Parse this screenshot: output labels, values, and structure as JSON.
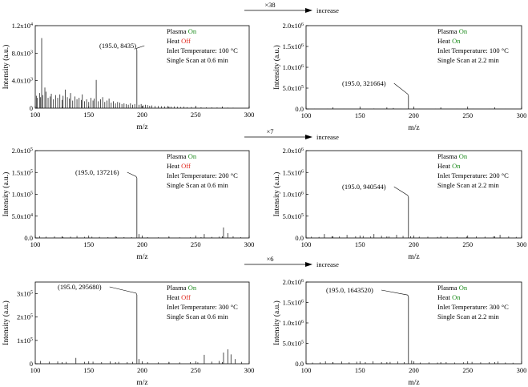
{
  "arrows": [
    {
      "multiplier": "×38",
      "label": "increase"
    },
    {
      "multiplier": "×7",
      "label": "increase"
    },
    {
      "multiplier": "×6",
      "label": "increase"
    }
  ],
  "legend_keys": {
    "plasma": "Plasma",
    "heat": "Heat"
  },
  "state_colors": {
    "On": "#1a8a1a",
    "Off": "#e0261b"
  },
  "chart_data": [
    {
      "type": "bar",
      "panel": "row1-left",
      "xlabel": "m/z",
      "ylabel": "Intensity (a.u.)",
      "xlim": [
        100,
        300
      ],
      "ylim": [
        0,
        12000
      ],
      "xticks": [
        100,
        150,
        200,
        250,
        300
      ],
      "yticks": [
        0,
        4000,
        8000,
        12000
      ],
      "ytick_labels": [
        "0",
        "4.0x10^3",
        "8.0x10^3",
        "1.2x10^4"
      ],
      "plasma": "On",
      "heat": "Off",
      "inlet_temperature": "Inlet Temperature: 100 °C",
      "scan": "Single Scan at 0.6 min",
      "peak_label": "(195.0, 8435)",
      "peak": [
        195.0,
        8435
      ],
      "x": [
        101,
        102,
        104,
        105,
        106,
        107,
        109,
        110,
        112,
        114,
        115,
        117,
        119,
        121,
        123,
        125,
        126,
        128,
        130,
        132,
        133,
        135,
        137,
        139,
        141,
        143,
        144,
        146,
        148,
        150,
        152,
        154,
        155,
        157,
        159,
        161,
        163,
        165,
        167,
        169,
        171,
        173,
        175,
        177,
        179,
        181,
        183,
        185,
        187,
        189,
        191,
        193,
        195,
        197,
        199,
        201,
        203,
        205,
        207,
        209,
        212,
        215,
        218,
        221,
        224,
        227,
        230,
        233,
        236,
        239,
        242,
        246,
        250,
        255,
        260,
        265,
        270,
        275,
        280,
        285
      ],
      "y": [
        1800,
        1500,
        2200,
        1600,
        10200,
        1900,
        3000,
        2400,
        1500,
        1700,
        2100,
        1300,
        1900,
        1500,
        2000,
        1200,
        1800,
        2700,
        1600,
        1400,
        2200,
        1100,
        1700,
        1300,
        1500,
        1200,
        2000,
        1000,
        1300,
        900,
        1500,
        1100,
        1400,
        4100,
        1000,
        1300,
        1600,
        900,
        1100,
        1400,
        800,
        1000,
        700,
        900,
        800,
        600,
        700,
        600,
        500,
        700,
        500,
        600,
        8435,
        500,
        600,
        400,
        500,
        450,
        350,
        400,
        300,
        300,
        280,
        250,
        300,
        220,
        250,
        200,
        180,
        220,
        150,
        180,
        160,
        130,
        120,
        110,
        100,
        90,
        80,
        70
      ]
    },
    {
      "type": "bar",
      "panel": "row1-right",
      "xlabel": "m/z",
      "ylabel": "Intensity (a.u.)",
      "xlim": [
        100,
        300
      ],
      "ylim": [
        0,
        2000000
      ],
      "xticks": [
        100,
        150,
        200,
        250,
        300
      ],
      "yticks": [
        0,
        500000,
        1000000,
        1500000,
        2000000
      ],
      "ytick_labels": [
        "0.0",
        "5.0x10^5",
        "1.0x10^6",
        "1.5x10^6",
        "2.0x10^6"
      ],
      "plasma": "On",
      "heat": "On",
      "inlet_temperature": "Inlet Temperature: 100 °C",
      "scan": "Single Scan at 2.2 min",
      "peak_label": "(195.0, 321664)",
      "peak": [
        195.0,
        321664
      ],
      "x": [
        108,
        120,
        135,
        150,
        163,
        176,
        181,
        188,
        195,
        205,
        220,
        240,
        255,
        270,
        285
      ],
      "y": [
        8000,
        9000,
        7000,
        10000,
        12000,
        9000,
        25000,
        8000,
        321664,
        7000,
        6000,
        5000,
        6000,
        5000,
        4000
      ]
    },
    {
      "type": "bar",
      "panel": "row2-left",
      "xlabel": "m/z",
      "ylabel": "Intensity (a.u.)",
      "xlim": [
        100,
        300
      ],
      "ylim": [
        0,
        200000
      ],
      "xticks": [
        100,
        150,
        200,
        250,
        300
      ],
      "yticks": [
        0,
        50000,
        100000,
        150000,
        200000
      ],
      "ytick_labels": [
        "0.0",
        "5.0x10^4",
        "1.0x10^5",
        "1.5x10^5",
        "2.0x10^5"
      ],
      "plasma": "On",
      "heat": "Off",
      "inlet_temperature": "Inlet Temperature: 200 °C",
      "scan": "Single Scan at 0.6 min",
      "peak_label": "(195.0, 137216)",
      "peak": [
        195.0,
        137216
      ],
      "x": [
        104,
        110,
        118,
        126,
        133,
        139,
        146,
        153,
        160,
        168,
        176,
        183,
        190,
        195,
        197,
        205,
        215,
        225,
        235,
        245,
        255,
        258,
        265,
        272,
        276,
        280,
        285,
        292
      ],
      "y": [
        4000,
        3000,
        3500,
        2500,
        3000,
        4500,
        2500,
        3000,
        2500,
        2000,
        2500,
        2000,
        2000,
        137216,
        9000,
        2000,
        1500,
        2000,
        1500,
        1500,
        2000,
        9000,
        2500,
        3000,
        24000,
        11000,
        4000,
        2000
      ]
    },
    {
      "type": "bar",
      "panel": "row2-right",
      "xlabel": "m/z",
      "ylabel": "Intensity (a.u.)",
      "xlim": [
        100,
        300
      ],
      "ylim": [
        0,
        2000000
      ],
      "xticks": [
        100,
        150,
        200,
        250,
        300
      ],
      "yticks": [
        0,
        500000,
        1000000,
        1500000,
        2000000
      ],
      "ytick_labels": [
        "0.0",
        "5.0x10^5",
        "1.0x10^6",
        "1.5x10^6",
        "2.0x10^6"
      ],
      "plasma": "On",
      "heat": "On",
      "inlet_temperature": "Inlet Temperature: 200 °C",
      "scan": "Single Scan at 2.2 min",
      "peak_label": "(195.0, 940544)",
      "peak": [
        195.0,
        940544
      ],
      "x": [
        105,
        112,
        117,
        124,
        131,
        138,
        146,
        153,
        160,
        163,
        170,
        177,
        184,
        190,
        195,
        197,
        205,
        213,
        222,
        231,
        240,
        249,
        258,
        266,
        274,
        280,
        288,
        295
      ],
      "y": [
        30000,
        25000,
        90000,
        40000,
        35000,
        70000,
        40000,
        45000,
        35000,
        90000,
        50000,
        35000,
        70000,
        45000,
        940544,
        40000,
        30000,
        30000,
        25000,
        30000,
        25000,
        30000,
        35000,
        30000,
        40000,
        70000,
        35000,
        25000
      ]
    },
    {
      "type": "bar",
      "panel": "row3-left",
      "xlabel": "m/z",
      "ylabel": "Intensity (a.u.)",
      "xlim": [
        100,
        300
      ],
      "ylim": [
        0,
        350000
      ],
      "xticks": [
        100,
        150,
        200,
        250,
        300
      ],
      "yticks": [
        0,
        100000,
        200000,
        300000
      ],
      "ytick_labels": [
        "0",
        "1x10^5",
        "2x10^5",
        "3x10^5"
      ],
      "plasma": "On",
      "heat": "Off",
      "inlet_temperature": "Inlet Temperature: 300 °C",
      "scan": "Single Scan at 0.6 min",
      "peak_label": "(195.0, 295680)",
      "peak": [
        195.0,
        295680
      ],
      "x": [
        105,
        113,
        121,
        129,
        138,
        146,
        154,
        162,
        170,
        178,
        186,
        191,
        195,
        197,
        205,
        215,
        225,
        235,
        245,
        252,
        258,
        265,
        272,
        276,
        280,
        283,
        287,
        293
      ],
      "y": [
        12000,
        9000,
        10000,
        8000,
        25000,
        8000,
        9000,
        7000,
        10000,
        8000,
        7000,
        8000,
        295680,
        20000,
        7000,
        6000,
        8000,
        6000,
        7000,
        6000,
        38000,
        9000,
        12000,
        48000,
        62000,
        40000,
        20000,
        8000
      ]
    },
    {
      "type": "bar",
      "panel": "row3-right",
      "xlabel": "m/z",
      "ylabel": "Intensity (a.u.)",
      "xlim": [
        100,
        300
      ],
      "ylim": [
        0,
        2000000
      ],
      "xticks": [
        100,
        150,
        200,
        250,
        300
      ],
      "yticks": [
        0,
        500000,
        1000000,
        1500000,
        2000000
      ],
      "ytick_labels": [
        "0.0",
        "5.0x10^5",
        "1.0x10^6",
        "1.5x10^6",
        "2.0x10^6"
      ],
      "plasma": "On",
      "heat": "On",
      "inlet_temperature": "Inlet Temperature: 300 °C",
      "scan": "Single Scan at 2.2 min",
      "peak_label": "(195.0, 1643520)",
      "peak": [
        195.0,
        1643520
      ],
      "x": [
        106,
        113,
        118,
        125,
        133,
        140,
        147,
        155,
        162,
        170,
        178,
        185,
        191,
        195,
        198,
        206,
        214,
        222,
        230,
        238,
        246,
        254,
        262,
        270,
        278,
        285,
        292
      ],
      "y": [
        30000,
        35000,
        60000,
        40000,
        55000,
        35000,
        50000,
        40000,
        60000,
        40000,
        45000,
        55000,
        40000,
        1643520,
        80000,
        30000,
        35000,
        30000,
        40000,
        30000,
        35000,
        45000,
        35000,
        40000,
        55000,
        30000,
        25000
      ]
    }
  ]
}
